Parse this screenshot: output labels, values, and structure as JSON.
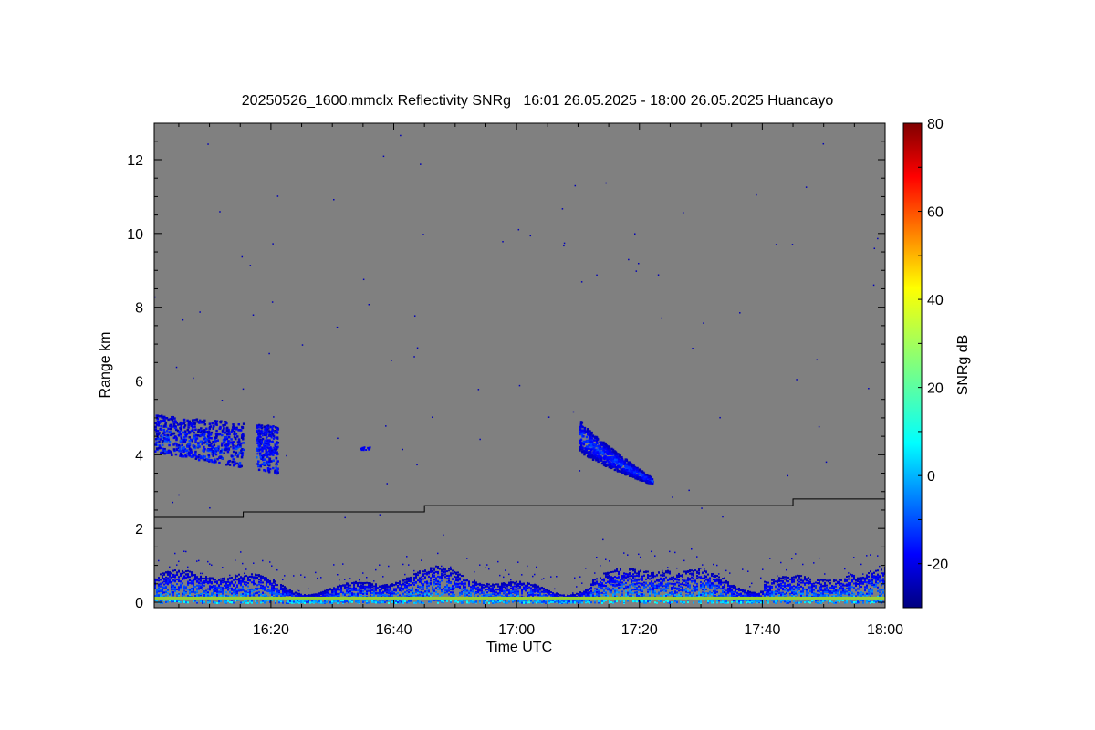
{
  "chart_data": {
    "type": "heatmap",
    "title": "20250526_1600.mmclx Reflectivity SNRg   16:01 26.05.2025 - 18:00 26.05.2025 Huancayo",
    "xlabel": "Time UTC",
    "ylabel": "Range km",
    "colorbar_label": "SNRg dB",
    "x_range": [
      "16:01",
      "18:00"
    ],
    "xlim_minutes_after_1600": [
      1,
      120
    ],
    "ylim": [
      0,
      13
    ],
    "x_ticks": [
      {
        "label": "16:20",
        "minutes": 20
      },
      {
        "label": "16:40",
        "minutes": 40
      },
      {
        "label": "17:00",
        "minutes": 60
      },
      {
        "label": "17:20",
        "minutes": 80
      },
      {
        "label": "17:40",
        "minutes": 100
      },
      {
        "label": "18:00",
        "minutes": 120
      }
    ],
    "y_ticks": [
      {
        "label": "0",
        "value": 0
      },
      {
        "label": "2",
        "value": 2
      },
      {
        "label": "4",
        "value": 4
      },
      {
        "label": "6",
        "value": 6
      },
      {
        "label": "8",
        "value": 8
      },
      {
        "label": "10",
        "value": 10
      },
      {
        "label": "12",
        "value": 12
      }
    ],
    "colorbar": {
      "range": [
        -30,
        80
      ],
      "ticks": [
        {
          "label": "-20",
          "value": -20
        },
        {
          "label": "0",
          "value": 0
        },
        {
          "label": "20",
          "value": 20
        },
        {
          "label": "40",
          "value": 40
        },
        {
          "label": "60",
          "value": 60
        },
        {
          "label": "80",
          "value": 80
        }
      ],
      "colormap": "jet"
    },
    "background_color": "#808080",
    "colors": {
      "jet_low": "#00007f",
      "jet_high": "#7f0000",
      "line": "#000000"
    },
    "reference_line": [
      {
        "start_min": 1,
        "end_min": 15.5,
        "range_km": 2.3
      },
      {
        "start_min": 15.5,
        "end_min": 45,
        "range_km": 2.45
      },
      {
        "start_min": 45,
        "end_min": 105,
        "range_km": 2.62
      },
      {
        "start_min": 105,
        "end_min": 120,
        "range_km": 2.8
      }
    ],
    "echo_features": [
      {
        "name": "cloud-16:01-16:20",
        "t_start_min": 1,
        "t_end_min": 21,
        "range_km": [
          3.4,
          5.2
        ],
        "snr_db": [
          -25,
          -5
        ]
      },
      {
        "name": "cloud-17:10-17:22",
        "t_start_min": 70,
        "t_end_min": 82,
        "range_km": [
          3.1,
          5.0
        ],
        "snr_db": [
          -25,
          -5
        ]
      },
      {
        "name": "near-surface-clutter",
        "t_start_min": 1,
        "t_end_min": 120,
        "range_km": [
          0,
          1.2
        ],
        "snr_db": [
          -25,
          20
        ]
      }
    ]
  }
}
